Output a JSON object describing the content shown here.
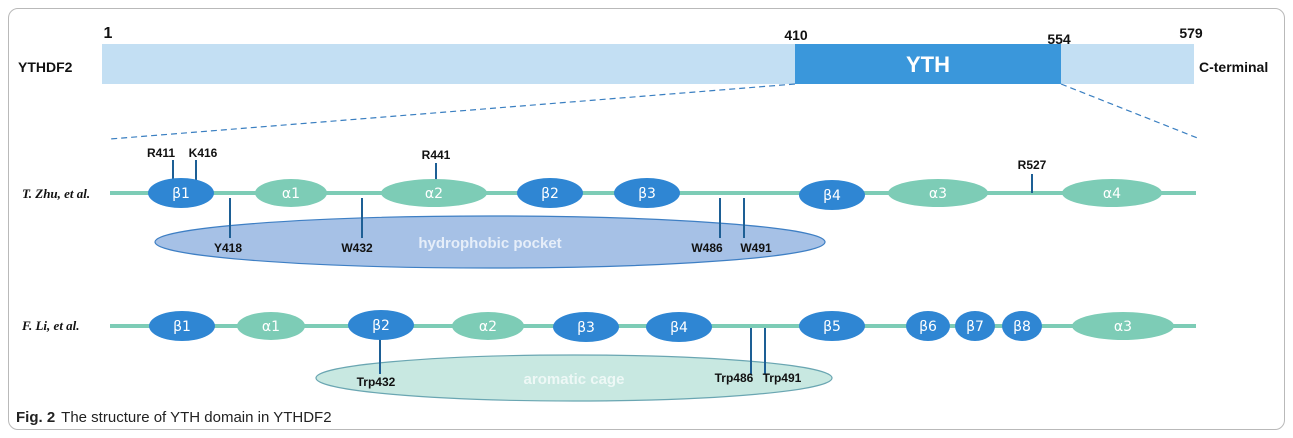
{
  "protein": {
    "name": "YTHDF2",
    "domain_label": "YTH",
    "terminal_label": "C-terminal",
    "positions": [
      "1",
      "410",
      "554",
      "579"
    ],
    "colors": {
      "bar": "#c3dff3",
      "domain": "#3a97db"
    }
  },
  "tracks": [
    {
      "author": "T. Zhu, et al.",
      "elements": [
        {
          "label": "β1",
          "kind": "beta"
        },
        {
          "label": "α1",
          "kind": "alpha"
        },
        {
          "label": "α2",
          "kind": "alpha"
        },
        {
          "label": "β2",
          "kind": "beta"
        },
        {
          "label": "β3",
          "kind": "beta"
        },
        {
          "label": "β4",
          "kind": "beta"
        },
        {
          "label": "α3",
          "kind": "alpha"
        },
        {
          "label": "α4",
          "kind": "alpha"
        }
      ],
      "residues_top": [
        "R411",
        "K416",
        "R441",
        "R527"
      ],
      "residues_bottom": [
        "Y418",
        "W432",
        "W486",
        "W491"
      ],
      "pocket_label": "hydrophobic pocket"
    },
    {
      "author": "F. Li, et al.",
      "elements": [
        {
          "label": "β1",
          "kind": "beta"
        },
        {
          "label": "α1",
          "kind": "alpha"
        },
        {
          "label": "β2",
          "kind": "beta"
        },
        {
          "label": "α2",
          "kind": "alpha"
        },
        {
          "label": "β3",
          "kind": "beta"
        },
        {
          "label": "β4",
          "kind": "beta"
        },
        {
          "label": "β5",
          "kind": "beta"
        },
        {
          "label": "β6",
          "kind": "beta"
        },
        {
          "label": "β7",
          "kind": "beta"
        },
        {
          "label": "β8",
          "kind": "beta"
        },
        {
          "label": "α3",
          "kind": "alpha"
        }
      ],
      "residues_bottom": [
        "Trp432",
        "Trp486",
        "Trp491"
      ],
      "pocket_label": "aromatic cage"
    }
  ],
  "colors": {
    "beta": "#2f86d3",
    "alpha": "#7dccb6",
    "track": "#7dccb6",
    "marker": "#1d5f95",
    "hydrophobic_pocket": "#a6c1e6",
    "aromatic_cage": "#c8e8e1"
  },
  "caption": {
    "label": "Fig. 2",
    "text": "The structure of YTH domain in YTHDF2"
  }
}
